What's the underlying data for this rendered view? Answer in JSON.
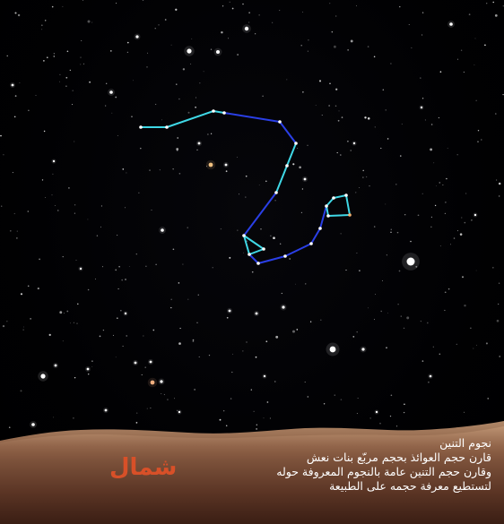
{
  "caption": {
    "lines": [
      "نجوم التنين",
      "قارن حجم العوائذ بحجم مربّع بنات نعش",
      "وقارن حجم التنين عامة بالنجوم المعروفة حوله",
      "لتستطيع معرفة حجمه على الطبيعة"
    ]
  },
  "direction_label": "شمال",
  "colors": {
    "sky": "#010103",
    "line_cyan": "#3fd8e6",
    "line_blue": "#2a3fe6",
    "ground_light": "#a27a5c",
    "ground_dark": "#4a2a1c",
    "north_label": "#d85028",
    "caption_text": "#ffffff"
  }
}
